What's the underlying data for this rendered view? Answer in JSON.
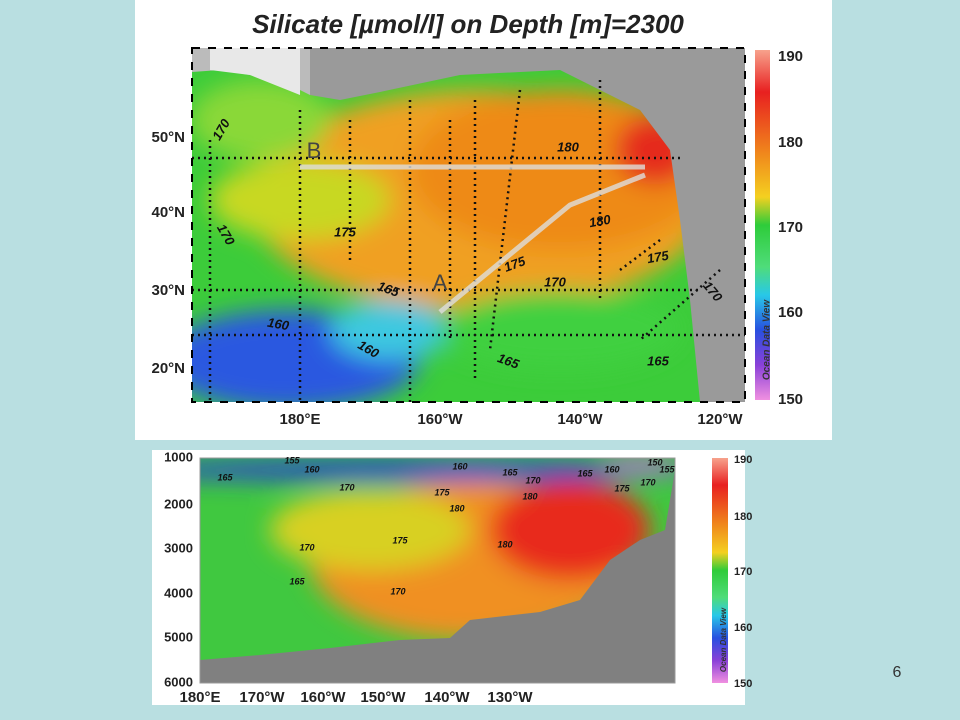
{
  "slide_number": "6",
  "map": {
    "title": "Silicate [µmol/l] on Depth [m]=2300",
    "lat_labels": [
      "50°N",
      "40°N",
      "30°N",
      "20°N"
    ],
    "lon_labels": [
      "180°E",
      "160°W",
      "140°W",
      "120°W"
    ],
    "colorbar_labels": [
      "190",
      "180",
      "170",
      "160",
      "150"
    ],
    "contour_labels": [
      "170",
      "170",
      "175",
      "165",
      "160",
      "160",
      "180",
      "180",
      "175",
      "170",
      "175",
      "170",
      "165",
      "165"
    ],
    "section_markers": [
      "A",
      "B"
    ],
    "watermark": "Ocean Data View"
  },
  "section": {
    "depth_labels": [
      "1000",
      "2000",
      "3000",
      "4000",
      "5000",
      "6000"
    ],
    "lon_labels": [
      "180°E",
      "170°W",
      "160°W",
      "150°W",
      "140°W",
      "130°W"
    ],
    "colorbar_labels": [
      "190",
      "180",
      "170",
      "160",
      "150"
    ],
    "contour_labels": [
      "155",
      "160",
      "165",
      "170",
      "160",
      "165",
      "170",
      "165",
      "160",
      "150",
      "155",
      "175",
      "175",
      "170",
      "180",
      "180",
      "175",
      "180",
      "170",
      "165",
      "170"
    ],
    "watermark": "Ocean Data View"
  }
}
